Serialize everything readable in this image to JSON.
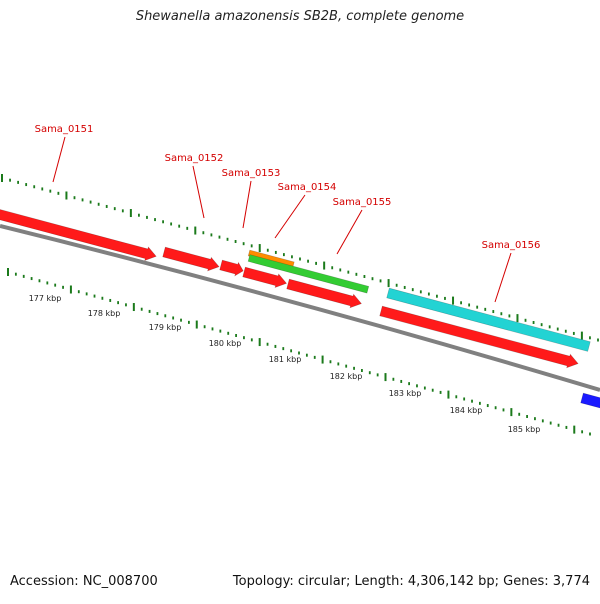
{
  "title": "Shewanella amazonensis SB2B, complete genome",
  "footer": {
    "accession": "Accession: NC_008700",
    "summary": "Topology: circular; Length: 4,306,142 bp; Genes: 3,774"
  },
  "colors": {
    "label": "#d40000",
    "tick": "#1b7a1b",
    "backbone": "#808080",
    "red": "#ff1a1a",
    "orange": "#ff8c00",
    "green": "#33cc33",
    "cyan": "#22d3d3",
    "blue": "#1a1aff"
  },
  "genes": [
    {
      "name": "Sama_0151"
    },
    {
      "name": "Sama_0152"
    },
    {
      "name": "Sama_0153"
    },
    {
      "name": "Sama_0154"
    },
    {
      "name": "Sama_0155"
    },
    {
      "name": "Sama_0156"
    }
  ],
  "kbp_labels": [
    "177 kbp",
    "178 kbp",
    "179 kbp",
    "180 kbp",
    "181 kbp",
    "182 kbp",
    "183 kbp",
    "184 kbp",
    "185 kbp"
  ]
}
